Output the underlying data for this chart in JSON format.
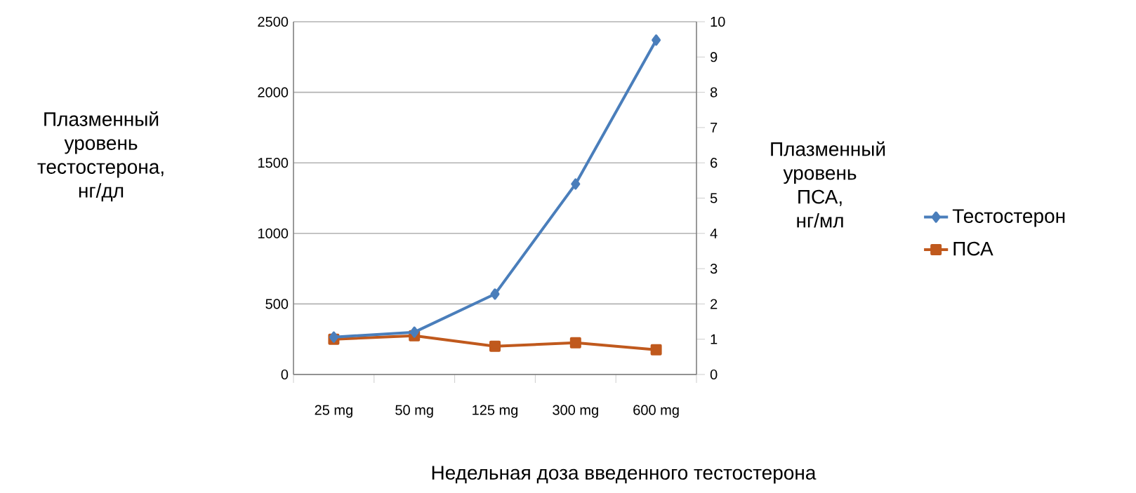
{
  "chart_data": {
    "type": "line",
    "xlabel": "Недельная доза введенного тестостерона",
    "ylabel": "Плазменный уровень тестостерона, нг/дл",
    "y2label": "Плазменный уровень ПСА, нг/мл",
    "categories": [
      "25 mg",
      "50 mg",
      "125 mg",
      "300 mg",
      "600 mg"
    ],
    "series": [
      {
        "name": "Тестостерон",
        "color": "#4a7ebb",
        "marker": "diamond",
        "values": [
          265,
          300,
          570,
          1350,
          2370
        ]
      },
      {
        "name": "ПСА",
        "color": "#c0591d",
        "marker": "square",
        "axis": "y2",
        "values": [
          1.0,
          1.1,
          0.8,
          0.9,
          0.7
        ]
      }
    ],
    "ylim": [
      0,
      2500
    ],
    "yticks": [
      0,
      500,
      1000,
      1500,
      2000,
      2500
    ],
    "y2lim": [
      0,
      10
    ],
    "y2ticks": [
      0,
      1,
      2,
      3,
      4,
      5,
      6,
      7,
      8,
      9,
      10
    ],
    "grid": "y",
    "legend": "right",
    "line_style": "solid"
  }
}
